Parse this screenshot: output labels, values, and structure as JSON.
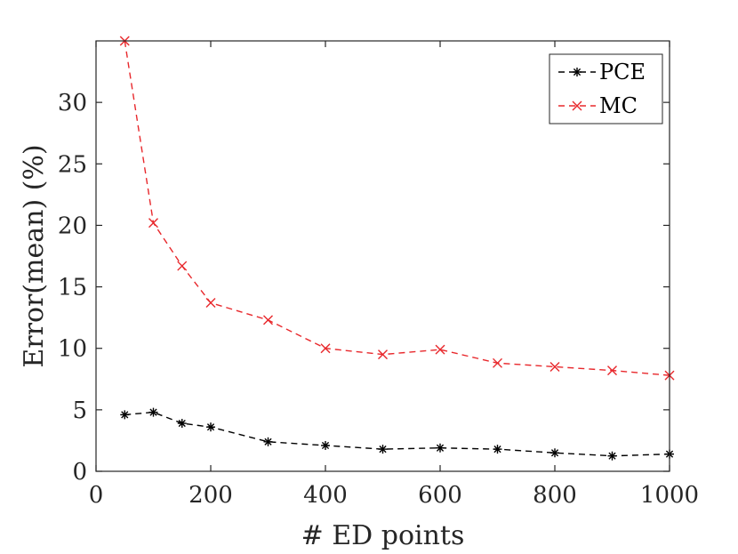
{
  "chart_data": {
    "type": "line",
    "title": "",
    "xlabel": "# ED points",
    "ylabel": "Error(mean) (%)",
    "xlim": [
      0,
      1000
    ],
    "ylim": [
      0,
      35
    ],
    "xticks": [
      0,
      200,
      400,
      600,
      800,
      1000
    ],
    "yticks": [
      0,
      5,
      10,
      15,
      20,
      25,
      30
    ],
    "grid": false,
    "legend_position": "top-right",
    "x": [
      50,
      100,
      150,
      200,
      300,
      400,
      500,
      600,
      700,
      800,
      900,
      1000
    ],
    "series": [
      {
        "name": "PCE",
        "color": "#000000",
        "marker": "asterisk",
        "linestyle": "dashed",
        "values": [
          4.6,
          4.8,
          3.9,
          3.6,
          2.4,
          2.1,
          1.8,
          1.9,
          1.8,
          1.5,
          1.25,
          1.4
        ]
      },
      {
        "name": "MC",
        "color": "#e8282c",
        "marker": "x",
        "linestyle": "dashed",
        "values": [
          35.0,
          20.2,
          16.7,
          13.7,
          12.3,
          10.0,
          9.5,
          9.9,
          8.8,
          8.5,
          8.2,
          7.8
        ]
      }
    ]
  }
}
